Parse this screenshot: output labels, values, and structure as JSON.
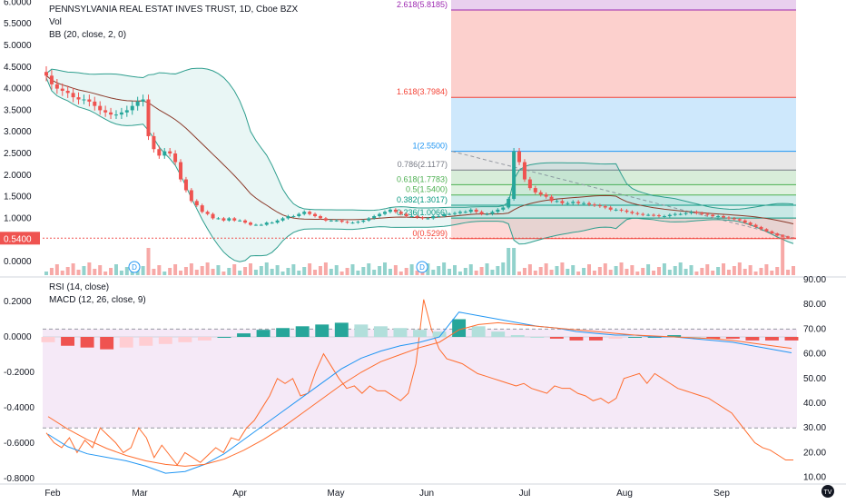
{
  "chart_title": "PENNSYLVANIA REAL ESTAT INVES TRUST, 1D, Cboe BZX",
  "indicator_vol": "Vol",
  "indicator_bb": "BB (20, close, 2, 0)",
  "indicator_rsi": "RSI (14, close)",
  "indicator_macd": "MACD (12, 26, close, 9)",
  "last_price_label": "0.5400",
  "tv_logo_text": "TV",
  "colors": {
    "up": "#26a69a",
    "down": "#ef5350",
    "bb": "#2e9e8e",
    "sma": "#8b3a2a",
    "macd": "#2196f3",
    "signal": "#ff6d2e",
    "rsi": "#ff6d2e"
  },
  "chart_data": [
    {
      "type": "candlestick",
      "title": "PENNSYLVANIA REAL ESTAT INVES TRUST, 1D, Cboe BZX",
      "ylim": [
        0,
        6
      ],
      "yticks": [
        "6.0000",
        "5.5000",
        "5.0000",
        "4.5000",
        "4.0000",
        "3.5000",
        "3.0000",
        "2.5000",
        "2.0000",
        "1.5000",
        "1.0000",
        "0.0000"
      ],
      "xticks": [
        "Feb",
        "Mar",
        "Apr",
        "May",
        "Jun",
        "Jul",
        "Aug",
        "Sep"
      ],
      "close_series": [
        4.3,
        4.1,
        4.0,
        3.95,
        3.9,
        3.8,
        3.75,
        3.75,
        3.7,
        3.6,
        3.5,
        3.45,
        3.4,
        3.4,
        3.45,
        3.5,
        3.6,
        3.7,
        3.75,
        2.9,
        2.6,
        2.45,
        2.55,
        2.5,
        2.3,
        1.9,
        1.65,
        1.4,
        1.3,
        1.15,
        1.1,
        1.0,
        1.0,
        0.95,
        1.0,
        0.95,
        0.95,
        0.9,
        0.85,
        0.85,
        0.85,
        0.9,
        0.9,
        0.95,
        1.0,
        1.05,
        1.05,
        1.1,
        1.15,
        1.1,
        1.05,
        1.0,
        0.95,
        0.95,
        0.95,
        0.92,
        0.9,
        0.9,
        0.92,
        0.95,
        1.0,
        1.05,
        1.1,
        1.15,
        1.2,
        1.15,
        1.1,
        1.05,
        1.05,
        1.02,
        1.0,
        1.0,
        1.05,
        1.05,
        1.1,
        1.1,
        1.12,
        1.15,
        1.15,
        1.2,
        1.15,
        1.1,
        1.1,
        1.15,
        1.2,
        1.25,
        1.45,
        2.55,
        2.3,
        1.9,
        1.7,
        1.6,
        1.55,
        1.5,
        1.4,
        1.4,
        1.35,
        1.35,
        1.38,
        1.35,
        1.35,
        1.32,
        1.3,
        1.28,
        1.25,
        1.2,
        1.2,
        1.18,
        1.15,
        1.12,
        1.1,
        1.08,
        1.08,
        1.07,
        1.05,
        1.05,
        1.08,
        1.1,
        1.1,
        1.12,
        1.15,
        1.12,
        1.1,
        1.08,
        1.05,
        1.05,
        1.02,
        1.0,
        0.98,
        0.95,
        0.9,
        0.85,
        0.8,
        0.75,
        0.7,
        0.65,
        0.6,
        0.58,
        0.55,
        0.54
      ],
      "fibonacci": [
        {
          "level": "2.618",
          "value": 5.8185,
          "label": "2.618(5.8185)"
        },
        {
          "level": "1.618",
          "value": 3.7984,
          "label": "1.618(3.7984)"
        },
        {
          "level": "1",
          "value": 2.55,
          "label": "1(2.5500)"
        },
        {
          "level": "0.786",
          "value": 2.1177,
          "label": "0.786(2.1177)"
        },
        {
          "level": "0.618",
          "value": 1.7783,
          "label": "0.618(1.7783)"
        },
        {
          "level": "0.5",
          "value": 1.54,
          "label": "0.5(1.5400)"
        },
        {
          "level": "0.382",
          "value": 1.3017,
          "label": "0.382(1.3017)"
        },
        {
          "level": "0.236",
          "value": 1.0066,
          "label": "0.236(1.0066)"
        },
        {
          "level": "0",
          "value": 0.5299,
          "label": "0(0.5299)"
        }
      ],
      "last_price": 0.54,
      "event_markers": [
        "D",
        "D"
      ]
    },
    {
      "type": "line",
      "title": "RSI (14, close)",
      "ylim": [
        10,
        90
      ],
      "yticks": [
        "90.00",
        "80.00",
        "70.00",
        "60.00",
        "50.00",
        "40.00",
        "30.00",
        "20.00",
        "10.00"
      ],
      "band": [
        30,
        70
      ],
      "values": [
        28,
        24,
        22,
        26,
        20,
        25,
        22,
        30,
        27,
        24,
        20,
        22,
        30,
        26,
        18,
        23,
        19,
        15,
        20,
        18,
        16,
        19,
        22,
        20,
        26,
        25,
        30,
        33,
        38,
        43,
        50,
        48,
        50,
        43,
        44,
        53,
        60,
        55,
        50,
        46,
        47,
        44,
        47,
        45,
        45,
        43,
        41,
        44,
        56,
        82,
        70,
        62,
        58,
        57,
        56,
        54,
        52,
        51,
        50,
        49,
        48,
        47,
        48,
        46,
        45,
        44,
        47,
        46,
        46,
        44,
        43,
        41,
        42,
        40,
        42,
        50,
        51,
        52,
        48,
        52,
        50,
        48,
        46,
        45,
        44,
        43,
        42,
        40,
        38,
        36,
        32,
        28,
        24,
        22,
        21,
        19,
        17,
        17
      ],
      "xticks": [
        "Feb",
        "Mar",
        "Apr",
        "May",
        "Jun",
        "Jul",
        "Aug",
        "Sep"
      ]
    },
    {
      "type": "bar",
      "title": "MACD (12, 26, close, 9)",
      "ylim": [
        -0.8,
        0.25
      ],
      "yticks": [
        "0.2000",
        "0.0000",
        "-0.2000",
        "-0.4000",
        "-0.6000",
        "-0.8000"
      ],
      "macd": [
        -0.55,
        -0.62,
        -0.66,
        -0.68,
        -0.7,
        -0.73,
        -0.77,
        -0.76,
        -0.72,
        -0.66,
        -0.58,
        -0.5,
        -0.42,
        -0.34,
        -0.26,
        -0.18,
        -0.12,
        -0.08,
        -0.05,
        -0.03,
        0.0,
        0.14,
        0.12,
        0.1,
        0.08,
        0.06,
        0.05,
        0.03,
        0.02,
        0.01,
        0.01,
        0.0,
        0.0,
        -0.01,
        -0.02,
        -0.03,
        -0.05,
        -0.07,
        -0.09
      ],
      "signal": [
        -0.45,
        -0.52,
        -0.58,
        -0.63,
        -0.67,
        -0.7,
        -0.72,
        -0.73,
        -0.72,
        -0.69,
        -0.64,
        -0.58,
        -0.51,
        -0.43,
        -0.35,
        -0.27,
        -0.2,
        -0.14,
        -0.1,
        -0.06,
        -0.03,
        0.04,
        0.07,
        0.08,
        0.07,
        0.06,
        0.05,
        0.04,
        0.03,
        0.02,
        0.01,
        0.005,
        0.0,
        -0.005,
        -0.01,
        -0.02,
        -0.035,
        -0.05,
        -0.065
      ],
      "hist": [
        -0.03,
        -0.05,
        -0.06,
        -0.07,
        -0.06,
        -0.05,
        -0.04,
        -0.03,
        -0.02,
        0.0,
        0.02,
        0.04,
        0.05,
        0.06,
        0.07,
        0.08,
        0.07,
        0.06,
        0.05,
        0.04,
        0.03,
        0.1,
        0.06,
        0.03,
        0.01,
        0.0,
        -0.01,
        -0.02,
        -0.02,
        -0.01,
        0.0,
        0.0,
        0.01,
        0.0,
        -0.01,
        -0.01,
        -0.02,
        -0.02,
        -0.02
      ],
      "zero_line": 0.0
    }
  ]
}
